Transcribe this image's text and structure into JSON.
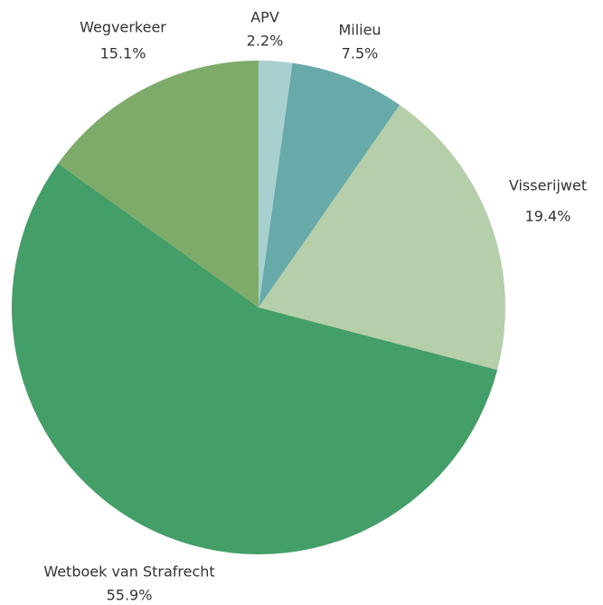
{
  "chart_data": {
    "type": "pie",
    "categories": [
      "APV",
      "Milieu",
      "Visserijwet",
      "Wetboek van Strafrecht",
      "Wegverkeer"
    ],
    "values": [
      2.2,
      7.5,
      19.4,
      55.9,
      15.1
    ],
    "value_labels": [
      "2.2%",
      "7.5%",
      "19.4%",
      "55.9%",
      "15.1%"
    ],
    "colors": [
      "#a8d0cf",
      "#68aaa9",
      "#b5cfaa",
      "#439e67",
      "#7eab6a"
    ]
  }
}
